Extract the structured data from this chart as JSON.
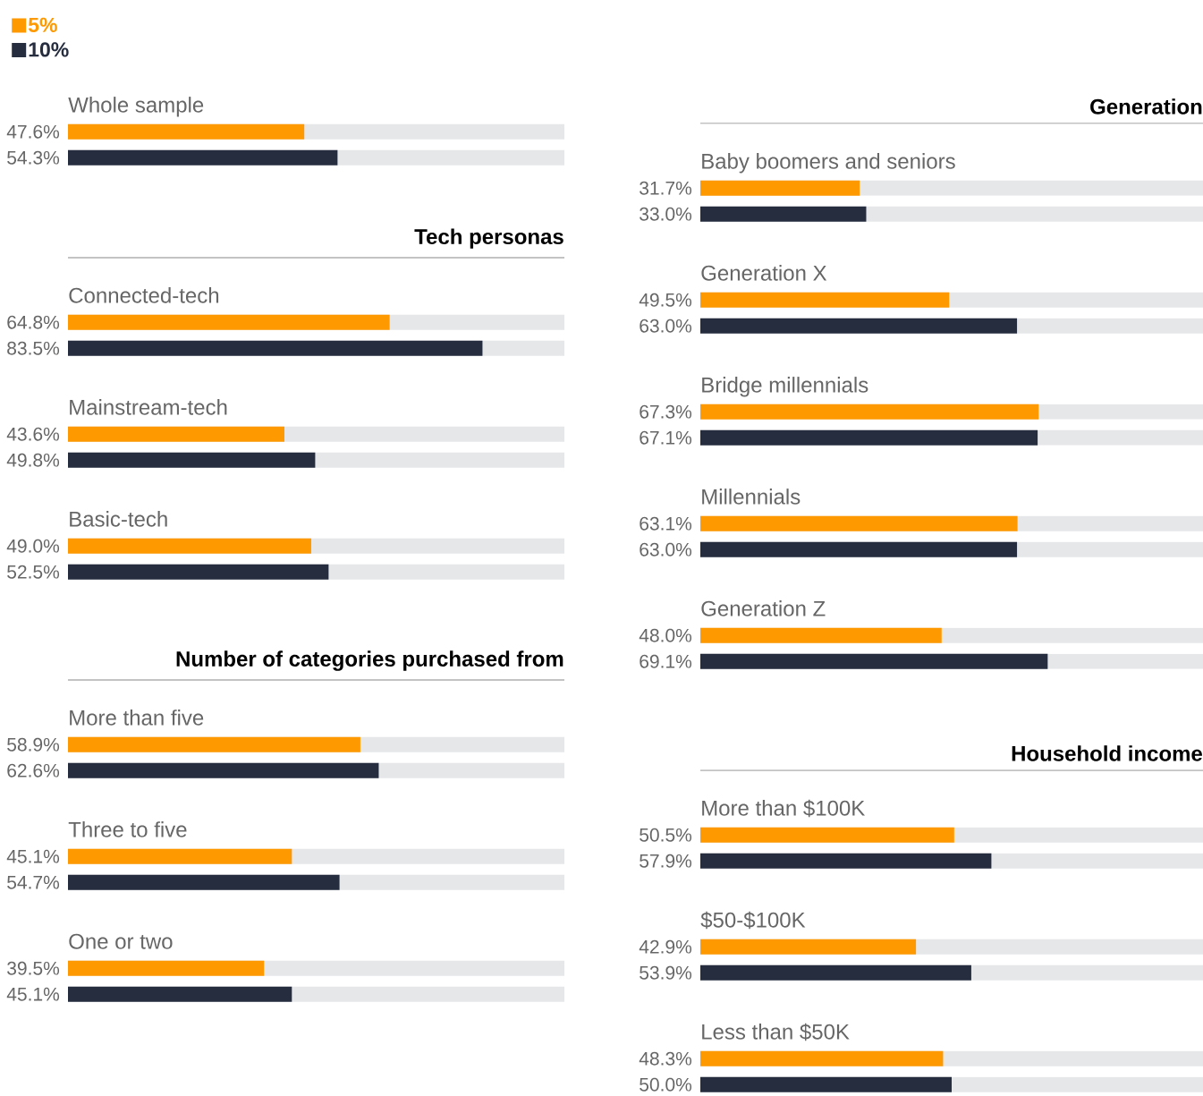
{
  "chart_data": [
    {
      "type": "bar",
      "orientation": "horizontal",
      "categories": [
        "Whole sample"
      ],
      "xlim": [
        0,
        100
      ],
      "legend": "top left",
      "series": [
        {
          "name": "5%",
          "color": "#ff9900",
          "values": [
            47.6
          ],
          "value_labels": [
            "47.6%"
          ]
        },
        {
          "name": "10%",
          "color": "#262d3f",
          "values": [
            54.3
          ],
          "value_labels": [
            "54.3%"
          ]
        }
      ]
    },
    {
      "type": "bar",
      "orientation": "horizontal",
      "title": "Tech personas",
      "categories": [
        "Connected-tech",
        "Mainstream-tech",
        "Basic-tech"
      ],
      "xlim": [
        0,
        100
      ],
      "series": [
        {
          "color": "#ff9900",
          "values": [
            64.8,
            43.6,
            49.0
          ],
          "value_labels": [
            "64.8%",
            "43.6%",
            "49.0%"
          ]
        },
        {
          "color": "#262d3f",
          "values": [
            83.5,
            49.8,
            52.5
          ],
          "value_labels": [
            "83.5%",
            "49.8%",
            "52.5%"
          ]
        }
      ]
    },
    {
      "type": "bar",
      "orientation": "horizontal",
      "title": "Number of categories purchased from",
      "categories": [
        "More than five",
        "Three to five",
        "One or two"
      ],
      "xlim": [
        0,
        100
      ],
      "series": [
        {
          "color": "#ff9900",
          "values": [
            58.9,
            45.1,
            39.5
          ],
          "value_labels": [
            "58.9%",
            "45.1%",
            "39.5%"
          ]
        },
        {
          "color": "#262d3f",
          "values": [
            62.6,
            54.7,
            45.1
          ],
          "value_labels": [
            "62.6%",
            "54.7%",
            "45.1%"
          ]
        }
      ]
    },
    {
      "type": "bar",
      "orientation": "horizontal",
      "title": "Generation",
      "categories": [
        "Baby boomers and seniors",
        "Generation X",
        "Bridge millennials",
        "Millennials",
        "Generation Z"
      ],
      "xlim": [
        0,
        100
      ],
      "series": [
        {
          "color": "#ff9900",
          "values": [
            31.7,
            49.5,
            67.3,
            63.1,
            48.0
          ],
          "value_labels": [
            "31.7%",
            "49.5%",
            "67.3%",
            "63.1%",
            "48.0%"
          ]
        },
        {
          "color": "#262d3f",
          "values": [
            33.0,
            63.0,
            67.1,
            63.0,
            69.1
          ],
          "value_labels": [
            "33.0%",
            "63.0%",
            "67.1%",
            "63.0%",
            "69.1%"
          ]
        }
      ]
    },
    {
      "type": "bar",
      "orientation": "horizontal",
      "title": "Household income",
      "categories": [
        "More than $100K",
        "$50-$100K",
        "Less than $50K"
      ],
      "xlim": [
        0,
        100
      ],
      "series": [
        {
          "color": "#ff9900",
          "values": [
            50.5,
            42.9,
            48.3
          ],
          "value_labels": [
            "50.5%",
            "42.9%",
            "48.3%"
          ]
        },
        {
          "color": "#262d3f",
          "values": [
            57.9,
            53.9,
            50.0
          ],
          "value_labels": [
            "57.9%",
            "53.9%",
            "50.0%"
          ]
        }
      ]
    }
  ]
}
